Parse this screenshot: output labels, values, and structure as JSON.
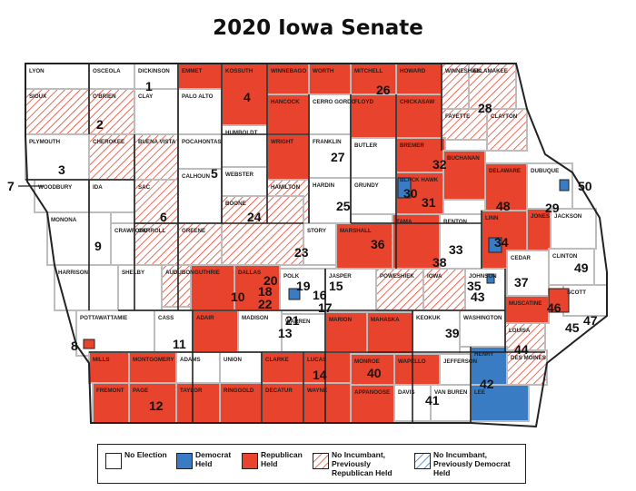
{
  "title": "2020 Iowa Senate",
  "colors": {
    "no_election": "#ffffff",
    "democrat_held": "#3a7cc4",
    "republican_held": "#e8432d",
    "hatch_red": "#e8432d",
    "hatch_blue": "#3a7cc4",
    "county_border": "#bdbdbd",
    "outline": "#222222"
  },
  "legend": [
    {
      "key": "no_election",
      "label": "No Election",
      "fill": "white"
    },
    {
      "key": "democrat_held",
      "label": "Democrat Held",
      "fill": "blue"
    },
    {
      "key": "republican_held",
      "label": "Republican Held",
      "fill": "red"
    },
    {
      "key": "no_incumbent_rep",
      "label": "No Incumbant, Previously Republican Held",
      "fill": "red-hatch"
    },
    {
      "key": "no_incumbent_dem",
      "label": "No Incumbant, Previously Democrat Held",
      "fill": "blue-hatch"
    }
  ],
  "counties": [
    {
      "name": "LYON",
      "status": "none",
      "row": 0,
      "col": 0
    },
    {
      "name": "OSCEOLA",
      "status": "none",
      "row": 0,
      "col": 1
    },
    {
      "name": "DICKINSON",
      "status": "none",
      "row": 0,
      "col": 2
    },
    {
      "name": "EMMET",
      "status": "rep",
      "row": 0,
      "col": 3
    },
    {
      "name": "KOSSUTH",
      "status": "rep",
      "row": 0,
      "col": 4
    },
    {
      "name": "WINNEBAGO",
      "status": "rep",
      "row": 0,
      "col": 5
    },
    {
      "name": "WORTH",
      "status": "rep",
      "row": 0,
      "col": 6
    },
    {
      "name": "MITCHELL",
      "status": "rep",
      "row": 0,
      "col": 7
    },
    {
      "name": "HOWARD",
      "status": "rep",
      "row": 0,
      "col": 8
    },
    {
      "name": "WINNESHIEK",
      "status": "hatch",
      "row": 0,
      "col": 9
    },
    {
      "name": "ALLAMAKEE",
      "status": "hatch",
      "row": 0,
      "col": 10
    },
    {
      "name": "SIOUX",
      "status": "hatch",
      "row": 1,
      "col": 0
    },
    {
      "name": "O'BRIEN",
      "status": "hatch",
      "row": 1,
      "col": 1
    },
    {
      "name": "CLAY",
      "status": "none",
      "row": 1,
      "col": 2
    },
    {
      "name": "PALO ALTO",
      "status": "none",
      "row": 1,
      "col": 3
    },
    {
      "name": "HANCOCK",
      "status": "rep",
      "row": 1,
      "col": 5
    },
    {
      "name": "CERRO GORDO",
      "status": "none",
      "row": 1,
      "col": 6
    },
    {
      "name": "FLOYD",
      "status": "rep",
      "row": 1,
      "col": 7
    },
    {
      "name": "CHICKASAW",
      "status": "rep",
      "row": 1,
      "col": 8
    },
    {
      "name": "FAYETTE",
      "status": "hatch",
      "row": 1,
      "col": 9
    },
    {
      "name": "CLAYTON",
      "status": "hatch",
      "row": 1,
      "col": 10
    },
    {
      "name": "PLYMOUTH",
      "status": "none",
      "row": 2,
      "col": 0
    },
    {
      "name": "CHEROKEE",
      "status": "hatch",
      "row": 2,
      "col": 1
    },
    {
      "name": "BUENA VISTA",
      "status": "hatch",
      "row": 2,
      "col": 2
    },
    {
      "name": "POCAHONTAS",
      "status": "none",
      "row": 2,
      "col": 3
    },
    {
      "name": "HUMBOLDT",
      "status": "none",
      "row": 2,
      "col": 4
    },
    {
      "name": "WRIGHT",
      "status": "rep",
      "row": 2,
      "col": 5
    },
    {
      "name": "FRANKLIN",
      "status": "none",
      "row": 2,
      "col": 6
    },
    {
      "name": "BUTLER",
      "status": "none",
      "row": 2,
      "col": 7
    },
    {
      "name": "BREMER",
      "status": "rep",
      "row": 2,
      "col": 8
    },
    {
      "name": "WEBSTER",
      "status": "none",
      "row": 2,
      "col": 4
    },
    {
      "name": "WOODBURY",
      "status": "none",
      "row": 3,
      "col": 0
    },
    {
      "name": "IDA",
      "status": "none",
      "row": 3,
      "col": 1
    },
    {
      "name": "SAC",
      "status": "hatch",
      "row": 3,
      "col": 2
    },
    {
      "name": "CALHOUN",
      "status": "none",
      "row": 3,
      "col": 3
    },
    {
      "name": "HAMILTON",
      "status": "hatch",
      "row": 3,
      "col": 5
    },
    {
      "name": "HARDIN",
      "status": "none",
      "row": 3,
      "col": 6
    },
    {
      "name": "GRUNDY",
      "status": "none",
      "row": 3,
      "col": 7
    },
    {
      "name": "BLACK HAWK",
      "status": "rep",
      "row": 3,
      "col": 8
    },
    {
      "name": "BUCHANAN",
      "status": "rep",
      "row": 3,
      "col": 9
    },
    {
      "name": "DELAWARE",
      "status": "rep",
      "row": 3,
      "col": 10
    },
    {
      "name": "DUBUQUE",
      "status": "none",
      "row": 3,
      "col": 11
    },
    {
      "name": "MONONA",
      "status": "none",
      "row": 4,
      "col": 0
    },
    {
      "name": "CRAWFORD",
      "status": "none",
      "row": 4,
      "col": 1
    },
    {
      "name": "CARROLL",
      "status": "hatch",
      "row": 4,
      "col": 2
    },
    {
      "name": "GREENE",
      "status": "hatch",
      "row": 4,
      "col": 3
    },
    {
      "name": "BOONE",
      "status": "hatch",
      "row": 4,
      "col": 4
    },
    {
      "name": "STORY",
      "status": "none",
      "row": 4,
      "col": 5
    },
    {
      "name": "MARSHALL",
      "status": "rep",
      "row": 4,
      "col": 6
    },
    {
      "name": "TAMA",
      "status": "rep",
      "row": 4,
      "col": 7
    },
    {
      "name": "BENTON",
      "status": "none",
      "row": 4,
      "col": 8
    },
    {
      "name": "LINN",
      "status": "rep",
      "row": 4,
      "col": 9
    },
    {
      "name": "JONES",
      "status": "rep",
      "row": 4,
      "col": 10
    },
    {
      "name": "JACKSON",
      "status": "none",
      "row": 4,
      "col": 11
    },
    {
      "name": "HARRISON",
      "status": "none",
      "row": 5,
      "col": 0
    },
    {
      "name": "SHELBY",
      "status": "none",
      "row": 5,
      "col": 1
    },
    {
      "name": "AUDUBON",
      "status": "hatch",
      "row": 5,
      "col": 2
    },
    {
      "name": "GUTHRIE",
      "status": "rep",
      "row": 5,
      "col": 3
    },
    {
      "name": "DALLAS",
      "status": "rep",
      "row": 5,
      "col": 4
    },
    {
      "name": "POLK",
      "status": "none",
      "row": 5,
      "col": 5
    },
    {
      "name": "JASPER",
      "status": "none",
      "row": 5,
      "col": 6
    },
    {
      "name": "POWESHIEK",
      "status": "hatch",
      "row": 5,
      "col": 7
    },
    {
      "name": "IOWA",
      "status": "hatch",
      "row": 5,
      "col": 8
    },
    {
      "name": "JOHNSON",
      "status": "none",
      "row": 5,
      "col": 9
    },
    {
      "name": "CEDAR",
      "status": "none",
      "row": 5,
      "col": 10
    },
    {
      "name": "CLINTON",
      "status": "none",
      "row": 5,
      "col": 11
    },
    {
      "name": "SCOTT",
      "status": "none",
      "row": 6,
      "col": 11
    },
    {
      "name": "MUSCATINE",
      "status": "rep",
      "row": 6,
      "col": 10
    },
    {
      "name": "POTTAWATTAMIE",
      "status": "none",
      "row": 6,
      "col": 0
    },
    {
      "name": "CASS",
      "status": "none",
      "row": 6,
      "col": 1
    },
    {
      "name": "ADAIR",
      "status": "rep",
      "row": 6,
      "col": 3
    },
    {
      "name": "MADISON",
      "status": "none",
      "row": 6,
      "col": 4
    },
    {
      "name": "WARREN",
      "status": "none",
      "row": 6,
      "col": 5
    },
    {
      "name": "MARION",
      "status": "rep",
      "row": 6,
      "col": 6
    },
    {
      "name": "MAHASKA",
      "status": "rep",
      "row": 6,
      "col": 7
    },
    {
      "name": "KEOKUK",
      "status": "none",
      "row": 6,
      "col": 8
    },
    {
      "name": "WASHINGTON",
      "status": "none",
      "row": 6,
      "col": 9
    },
    {
      "name": "LOUISA",
      "status": "hatch",
      "row": 6,
      "col": 10
    },
    {
      "name": "MILLS",
      "status": "rep",
      "row": 7,
      "col": 0
    },
    {
      "name": "MONTGOMERY",
      "status": "rep",
      "row": 7,
      "col": 1
    },
    {
      "name": "ADAMS",
      "status": "none",
      "row": 7,
      "col": 2
    },
    {
      "name": "UNION",
      "status": "none",
      "row": 7,
      "col": 3
    },
    {
      "name": "CLARKE",
      "status": "rep",
      "row": 7,
      "col": 4
    },
    {
      "name": "LUCAS",
      "status": "rep",
      "row": 7,
      "col": 5
    },
    {
      "name": "MONROE",
      "status": "rep",
      "row": 7,
      "col": 6
    },
    {
      "name": "WAPELLO",
      "status": "rep",
      "row": 7,
      "col": 7
    },
    {
      "name": "JEFFERSON",
      "status": "none",
      "row": 7,
      "col": 8
    },
    {
      "name": "HENRY",
      "status": "dem",
      "row": 7,
      "col": 9
    },
    {
      "name": "DES MOINES",
      "status": "hatch",
      "row": 7,
      "col": 10
    },
    {
      "name": "FREMONT",
      "status": "rep",
      "row": 8,
      "col": 0
    },
    {
      "name": "PAGE",
      "status": "rep",
      "row": 8,
      "col": 1
    },
    {
      "name": "TAYLOR",
      "status": "rep",
      "row": 8,
      "col": 2
    },
    {
      "name": "RINGGOLD",
      "status": "rep",
      "row": 8,
      "col": 3
    },
    {
      "name": "DECATUR",
      "status": "rep",
      "row": 8,
      "col": 4
    },
    {
      "name": "WAYNE",
      "status": "rep",
      "row": 8,
      "col": 5
    },
    {
      "name": "APPANOOSE",
      "status": "rep",
      "row": 8,
      "col": 6
    },
    {
      "name": "DAVIS",
      "status": "none",
      "row": 8,
      "col": 7
    },
    {
      "name": "VAN BUREN",
      "status": "none",
      "row": 8,
      "col": 8
    },
    {
      "name": "LEE",
      "status": "dem",
      "row": 8,
      "col": 9
    }
  ],
  "districts": [
    "1",
    "2",
    "3",
    "4",
    "5",
    "6",
    "7",
    "8",
    "9",
    "10",
    "11",
    "12",
    "13",
    "14",
    "15",
    "16",
    "17",
    "18",
    "19",
    "20",
    "21",
    "22",
    "23",
    "24",
    "25",
    "26",
    "27",
    "28",
    "29",
    "30",
    "31",
    "32",
    "33",
    "34",
    "35",
    "36",
    "37",
    "38",
    "39",
    "40",
    "41",
    "42",
    "43",
    "44",
    "45",
    "46",
    "47",
    "48",
    "49",
    "50"
  ]
}
